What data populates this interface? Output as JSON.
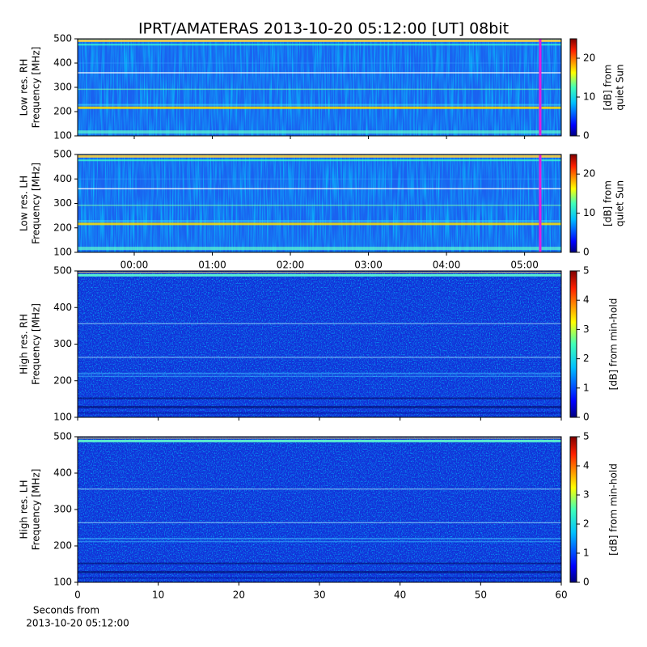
{
  "title": "IPRT/AMATERAS 2013-10-20 05:12:00 [UT]   08bit",
  "chart_data": [
    {
      "type": "heatmap",
      "resolution": "low",
      "ylabel": [
        "Low res. RH",
        "Frequency [MHz]"
      ],
      "ylim": [
        100,
        500
      ],
      "yticks": [
        100,
        200,
        300,
        400,
        500
      ],
      "xlim": [
        -0.725,
        5.47
      ],
      "xticks": [
        {
          "value": 0,
          "label": "00:00"
        },
        {
          "value": 1,
          "label": "01:00"
        },
        {
          "value": 2,
          "label": "02:00"
        },
        {
          "value": 3,
          "label": "03:00"
        },
        {
          "value": 4,
          "label": "04:00"
        },
        {
          "value": 5,
          "label": "05:00"
        }
      ],
      "xtick_labels": false,
      "colormap": "jet",
      "colorbar": {
        "label": [
          "[dB] from",
          "quiet Sun"
        ],
        "lim": [
          0,
          25
        ],
        "ticks": [
          0,
          10,
          20
        ]
      },
      "marker_x": 5.2,
      "marker_color": "#e020e0"
    },
    {
      "type": "heatmap",
      "resolution": "low",
      "ylabel": [
        "Low res. LH",
        "Frequency [MHz]"
      ],
      "ylim": [
        100,
        500
      ],
      "yticks": [
        100,
        200,
        300,
        400,
        500
      ],
      "xlim": [
        -0.725,
        5.47
      ],
      "xticks": [
        {
          "value": 0,
          "label": "00:00"
        },
        {
          "value": 1,
          "label": "01:00"
        },
        {
          "value": 2,
          "label": "02:00"
        },
        {
          "value": 3,
          "label": "03:00"
        },
        {
          "value": 4,
          "label": "04:00"
        },
        {
          "value": 5,
          "label": "05:00"
        }
      ],
      "xtick_labels": true,
      "colormap": "jet",
      "colorbar": {
        "label": [
          "[dB] from",
          "quiet Sun"
        ],
        "lim": [
          0,
          25
        ],
        "ticks": [
          0,
          10,
          20
        ]
      },
      "marker_x": 5.2,
      "marker_color": "#e020e0"
    },
    {
      "type": "heatmap",
      "resolution": "high",
      "ylabel": [
        "High res. RH",
        "Frequency [MHz]"
      ],
      "ylim": [
        100,
        500
      ],
      "yticks": [
        100,
        200,
        300,
        400,
        500
      ],
      "xlim": [
        0,
        60
      ],
      "xticks": [
        0,
        10,
        20,
        30,
        40,
        50,
        60
      ],
      "xtick_labels": false,
      "colormap": "jet",
      "colorbar": {
        "label": [
          "[dB] from min-hold"
        ],
        "lim": [
          0,
          5
        ],
        "ticks": [
          0,
          1,
          2,
          3,
          4,
          5
        ]
      }
    },
    {
      "type": "heatmap",
      "resolution": "high",
      "ylabel": [
        "High res. LH",
        "Frequency [MHz]"
      ],
      "ylim": [
        100,
        500
      ],
      "yticks": [
        100,
        200,
        300,
        400,
        500
      ],
      "xlim": [
        0,
        60
      ],
      "xticks": [
        0,
        10,
        20,
        30,
        40,
        50,
        60
      ],
      "xtick_labels": true,
      "xlabel": [
        "Seconds from",
        "2013-10-20 05:12:00"
      ],
      "colormap": "jet",
      "colorbar": {
        "label": [
          "[dB] from min-hold"
        ],
        "lim": [
          0,
          5
        ],
        "ticks": [
          0,
          1,
          2,
          3,
          4,
          5
        ]
      }
    }
  ]
}
